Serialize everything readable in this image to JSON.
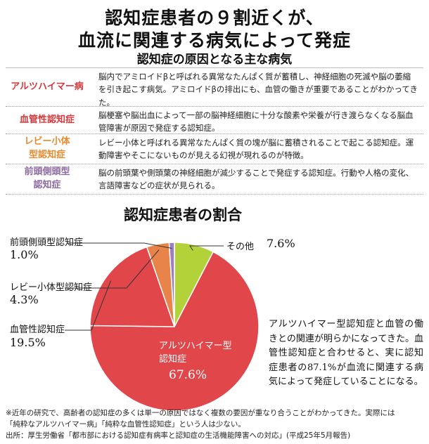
{
  "header": {
    "title_line1": "認知症患者の９割近くが、",
    "title_line2": "血流に関連する病気によって発症",
    "subtitle": "認知症の原因となる主な病気"
  },
  "table": [
    {
      "label": "アルツハイマー病",
      "desc": "脳内でアミロイドβと呼ばれる異常なたんぱく質が蓄積し、神経細胞の死滅や脳の萎縮を引き起こす病気。アミロイドβの排出にも、血管の働きが重要であることがわかってきた。"
    },
    {
      "label": "血管性認知症",
      "desc": "脳梗塞や脳出血によって一部の脳神経細胞に十分な酸素や栄養が行き渡らなくなる脳血管障害が原因で発症する認知症。"
    },
    {
      "label": "レビー小体型認知症",
      "desc": "レビー小体と呼ばれる異常なたんぱく質の塊が脳に蓄積されることで起こる認知症。運動障害やそこにないものが見える幻視が現れるのが特徴。"
    },
    {
      "label": "前頭側頭型認知症",
      "desc": "脳の前頭葉や側頭葉の神経細胞が減少することで発症する認知症。行動や人格の変化、言語障害などの症状が見られる。"
    }
  ],
  "chart_data": {
    "type": "pie",
    "title": "認知症患者の割合",
    "slices": [
      {
        "name": "アルツハイマー型認知症",
        "value": 67.6,
        "label": "67.6%",
        "color": "#e0464a"
      },
      {
        "name": "血管性認知症",
        "value": 19.5,
        "label": "19.5%",
        "color": "#e0464a"
      },
      {
        "name": "レビー小体型認知症",
        "value": 4.3,
        "label": "4.3%",
        "color": "#e8844a"
      },
      {
        "name": "前頭側頭型認知症",
        "value": 1.0,
        "label": "1.0%",
        "color": "#9b7fc0"
      },
      {
        "name": "その他",
        "value": 7.6,
        "label": "7.6%",
        "color": "#b3d23a"
      }
    ]
  },
  "chart_labels": {
    "ftd_name": "前頭側頭型認知症",
    "ftd_val": "1.0%",
    "lewy_name": "レビー小体型認知症",
    "lewy_val": "4.3%",
    "vasc_name": "血管性認知症",
    "vasc_val": "19.5%",
    "other_name": "その他",
    "other_val": "7.6%",
    "alz_name_line1": "アルツハイマー型",
    "alz_name_line2": "認知症",
    "alz_val": "67.6%"
  },
  "note": "アルツハイマー型認知症と血管の働きとの関連が明らかになってきた。血管性認知症と合わせると、実に認知症患者の87.1%が血流に関連する病気によって発症していることになる。",
  "footnote": {
    "line1": "※近年の研究で、高齢者の認知症の多くは単一の原因ではなく複数の要因が重なり合うことがわかってきた。実際には",
    "line2": "「純粋なアルツハイマー病」「純粋な血管性認知症」という人は少ない。",
    "line3": "出所：厚生労働省「都市部における認知症有病率と認知症の生活機能障害への対応」(平成25年5月報告)"
  }
}
